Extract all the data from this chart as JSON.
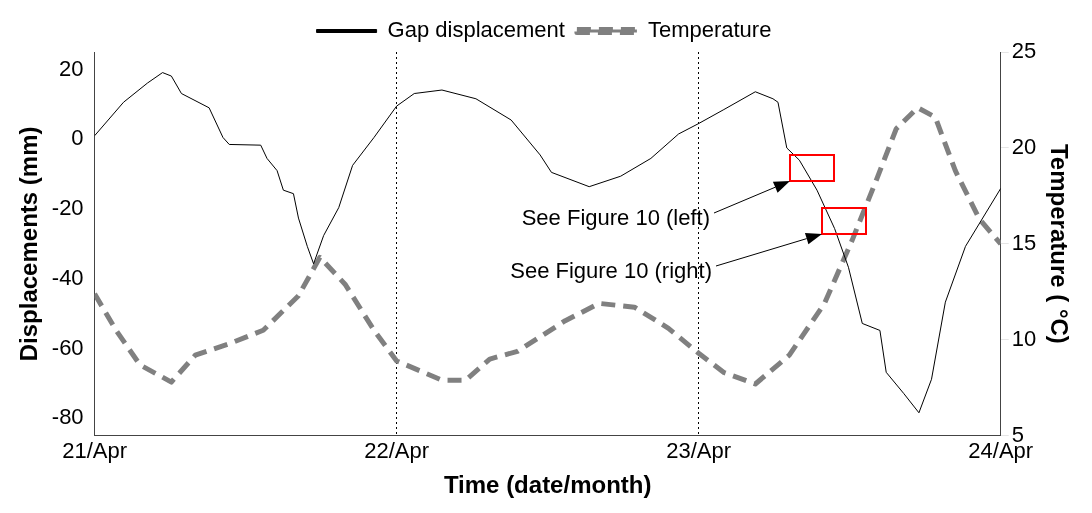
{
  "chart_data": {
    "type": "line",
    "xlabel": "Time (date/month)",
    "ylabel": "Displacements (mm)",
    "y2label": "Temperature ( °C)",
    "xlim": [
      "--04-21",
      "--04-24"
    ],
    "xticks": [
      {
        "value": "--04-21",
        "label": "21/Apr"
      },
      {
        "value": "--04-22",
        "label": "22/Apr"
      },
      {
        "value": "--04-23",
        "label": "23/Apr"
      },
      {
        "value": "--04-24",
        "label": "24/Apr"
      }
    ],
    "ylim": [
      -85,
      25
    ],
    "yticks": [
      -80,
      -60,
      -40,
      -20,
      0,
      20
    ],
    "y2lim": [
      5,
      25
    ],
    "y2ticks": [
      5,
      10,
      15,
      20,
      25
    ],
    "grid": "x",
    "legend": "top",
    "series": [
      {
        "name": "Gap displacement",
        "color": "#000000",
        "line_style": "solid",
        "x": [
          "--04-21T00:00",
          "--04-21T02:18",
          "--04-21T04:12",
          "--04-21T05:24",
          "--04-21T06:06",
          "--04-21T06:54",
          "--04-21T09:06",
          "--04-21T10:12",
          "--04-21T10:42",
          "--04-21T13:12",
          "--04-21T13:42",
          "--04-21T14:30",
          "--04-21T15:00",
          "--04-21T15:48",
          "--04-21T16:12",
          "--04-21T16:54",
          "--04-21T17:24",
          "--04-21T18:12",
          "--04-21T19:24",
          "--04-21T20:30",
          "--04-21T22:12",
          "--04-22T00:00",
          "--04-22T01:24",
          "--04-22T03:36",
          "--04-22T06:18",
          "--04-22T09:06",
          "--04-22T11:24",
          "--04-22T12:18",
          "--04-22T15:18",
          "--04-22T17:48",
          "--04-22T20:12",
          "--04-22T22:24",
          "--04-23T00:00",
          "--04-23T02:00",
          "--04-23T04:30",
          "--04-23T05:54",
          "--04-23T06:18",
          "--04-23T07:00",
          "--04-23T08:00",
          "--04-23T09:24",
          "--04-23T10:48",
          "--04-23T11:54",
          "--04-23T13:00",
          "--04-23T14:24",
          "--04-23T14:54",
          "--04-23T16:18",
          "--04-23T17:30",
          "--04-23T18:30",
          "--04-23T19:36",
          "--04-23T21:12",
          "--04-24T00:00"
        ],
        "values": [
          1,
          10.6,
          16.1,
          19.1,
          18.1,
          13.1,
          9,
          0.5,
          -1.5,
          -1.7,
          -5.5,
          -9,
          -14.6,
          -15.6,
          -22.6,
          -30.7,
          -35.7,
          -27.6,
          -19.6,
          -7.5,
          0.5,
          9.5,
          13.1,
          14.1,
          11.6,
          5.5,
          -4.5,
          -9.5,
          -13.6,
          -10.6,
          -5.5,
          1.5,
          4.5,
          8.5,
          13.6,
          11.6,
          10.6,
          -2.5,
          -6,
          -14.6,
          -25.6,
          -36.7,
          -52.8,
          -54.8,
          -66.8,
          -72.9,
          -78.4,
          -68.8,
          -46.7,
          -30.7,
          -14.1
        ]
      },
      {
        "name": "Temperature",
        "color": "#808080",
        "line_style": "dashed",
        "axis": "y2",
        "x": [
          "--04-21T00:00",
          "--04-21T01:42",
          "--04-21T03:36",
          "--04-21T06:06",
          "--04-21T08:00",
          "--04-21T10:42",
          "--04-21T13:24",
          "--04-21T16:12",
          "--04-21T17:54",
          "--04-21T19:54",
          "--04-21T22:12",
          "--04-22T00:00",
          "--04-22T03:36",
          "--04-22T05:30",
          "--04-22T07:24",
          "--04-22T09:36",
          "--04-22T11:30",
          "--04-22T13:24",
          "--04-22T16:06",
          "--04-22T18:54",
          "--04-22T21:36",
          "--04-23T00:00",
          "--04-23T02:00",
          "--04-23T04:30",
          "--04-23T07:12",
          "--04-23T10:00",
          "--04-23T12:12",
          "--04-23T14:06",
          "--04-23T15:42",
          "--04-23T17:24",
          "--04-23T18:48",
          "--04-23T20:24",
          "--04-23T22:18",
          "--04-24T00:00"
        ],
        "values": [
          12.4,
          10.5,
          8.7,
          7.8,
          9.2,
          9.8,
          10.5,
          12.3,
          14.3,
          12.9,
          10.5,
          8.9,
          7.9,
          7.9,
          9,
          9.4,
          10.2,
          11,
          11.9,
          11.7,
          10.6,
          9.3,
          8.3,
          7.7,
          9.2,
          11.9,
          15.2,
          18.3,
          21,
          22.1,
          21.6,
          18.8,
          16.3,
          15
        ]
      }
    ],
    "annotations": [
      "See Figure 10 (left)",
      "See Figure 10 (right)"
    ]
  }
}
